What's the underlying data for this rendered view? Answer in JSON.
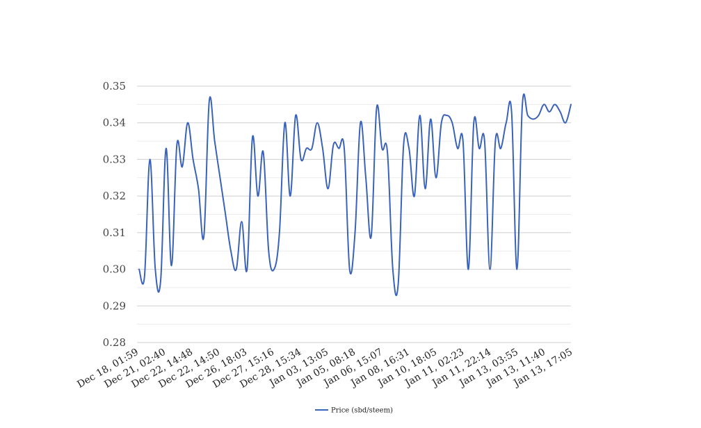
{
  "chart_data": {
    "type": "line",
    "title": "",
    "xlabel": "",
    "ylabel": "",
    "ylim": [
      0.28,
      0.35
    ],
    "yticks": [
      "0.35",
      "0.34",
      "0.33",
      "0.32",
      "0.31",
      "0.30",
      "0.29",
      "0.28"
    ],
    "ytick_values": [
      0.35,
      0.34,
      0.33,
      0.32,
      0.31,
      0.3,
      0.29,
      0.28
    ],
    "x_tick_labels": [
      "Dec 18, 01:59",
      "Dec 21, 02:40",
      "Dec 22, 14:48",
      "Dec 22, 14:50",
      "Dec 26, 18:03",
      "Dec 27, 15:16",
      "Dec 28, 15:34",
      "Jan 03, 13:05",
      "Jan 05, 08:18",
      "Jan 06, 15:07",
      "Jan 08, 16:31",
      "Jan 10, 18:05",
      "Jan 11, 02:23",
      "Jan 11, 22:14",
      "Jan 13, 03:55",
      "Jan 13, 11:40",
      "Jan 13, 17:05"
    ],
    "grid": true,
    "legend_position": "bottom-center",
    "colors": {
      "line": "#3a62b8",
      "grid_major": "#cfcfcf",
      "grid_minor": "#ececec"
    },
    "series": [
      {
        "name": "Price (sbd/steem)",
        "values": [
          0.3,
          0.298,
          0.33,
          0.3,
          0.297,
          0.333,
          0.301,
          0.334,
          0.328,
          0.34,
          0.33,
          0.322,
          0.309,
          0.346,
          0.335,
          0.325,
          0.315,
          0.305,
          0.3,
          0.313,
          0.3,
          0.336,
          0.32,
          0.332,
          0.305,
          0.3,
          0.31,
          0.34,
          0.32,
          0.342,
          0.33,
          0.333,
          0.333,
          0.34,
          0.333,
          0.322,
          0.334,
          0.333,
          0.333,
          0.3,
          0.31,
          0.34,
          0.325,
          0.309,
          0.344,
          0.333,
          0.332,
          0.3,
          0.296,
          0.334,
          0.333,
          0.32,
          0.342,
          0.322,
          0.341,
          0.325,
          0.34,
          0.342,
          0.34,
          0.333,
          0.335,
          0.3,
          0.34,
          0.333,
          0.335,
          0.3,
          0.335,
          0.333,
          0.34,
          0.343,
          0.3,
          0.345,
          0.342,
          0.341,
          0.342,
          0.345,
          0.343,
          0.345,
          0.343,
          0.34,
          0.345
        ]
      }
    ]
  }
}
